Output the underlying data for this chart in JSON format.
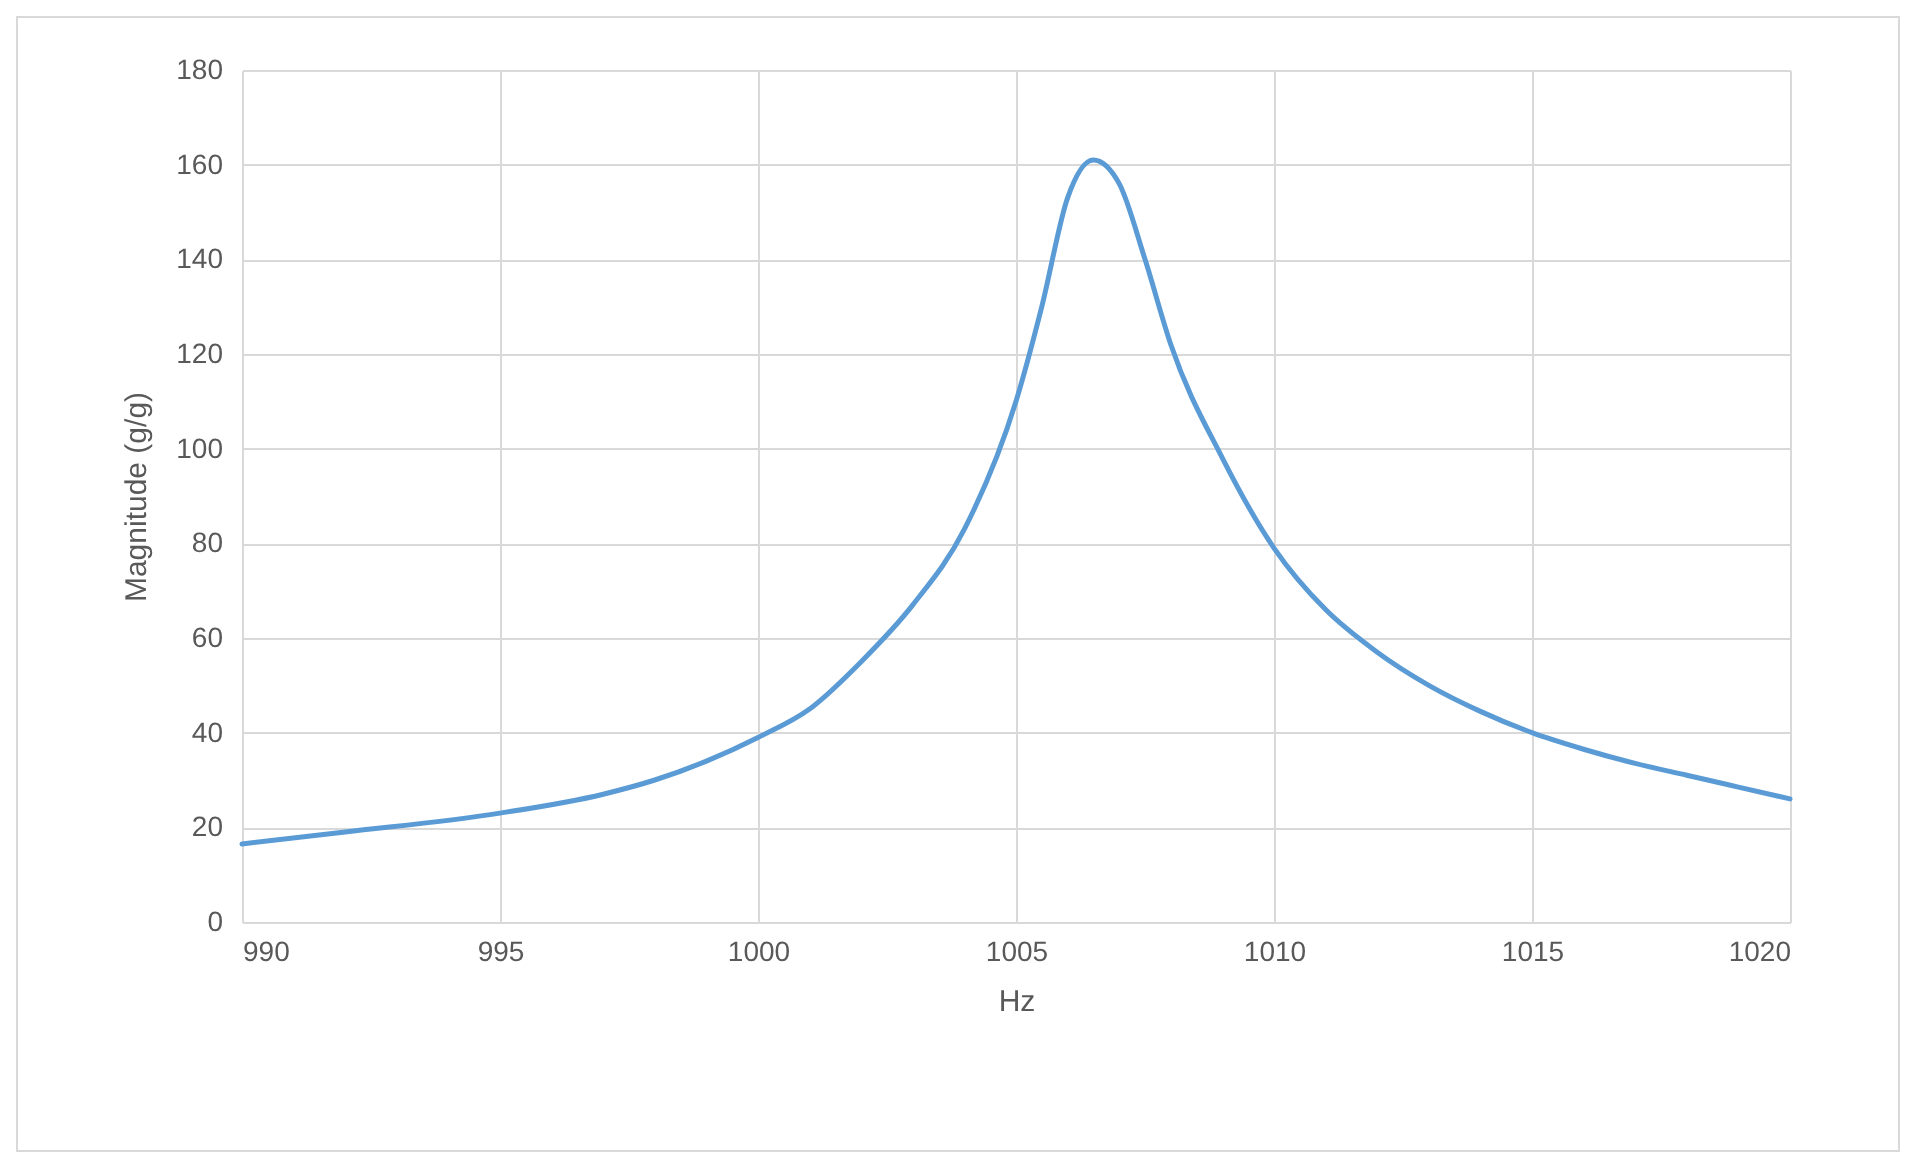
{
  "chart_data": {
    "type": "line",
    "xlabel": "Hz",
    "ylabel": "Magnitude (g/g)",
    "x": [
      990,
      992,
      995,
      997,
      998,
      999,
      1000,
      1001,
      1002,
      1003,
      1004,
      1005,
      1005.5,
      1006,
      1006.5,
      1007,
      1007.5,
      1008,
      1009,
      1010,
      1011,
      1012,
      1013,
      1014,
      1015,
      1016,
      1017,
      1018,
      1019,
      1020
    ],
    "series": [
      {
        "color": "#5b9bd5",
        "values": [
          16.5,
          19,
          23,
          27,
          30,
          34,
          39,
          45,
          55,
          67,
          83,
          110,
          130,
          153,
          161,
          156,
          140,
          122,
          98,
          79,
          66,
          57,
          50,
          44.5,
          40,
          36.5,
          33.5,
          31,
          28.5,
          26
        ]
      }
    ],
    "xlim": [
      990,
      1020
    ],
    "xticks": [
      990,
      995,
      1000,
      1005,
      1010,
      1015,
      1020
    ],
    "ylim": [
      0,
      180
    ],
    "yticks": [
      0,
      20,
      40,
      60,
      80,
      100,
      120,
      140,
      160,
      180
    ],
    "grid": true,
    "marker": "none",
    "line_style": "solid"
  }
}
